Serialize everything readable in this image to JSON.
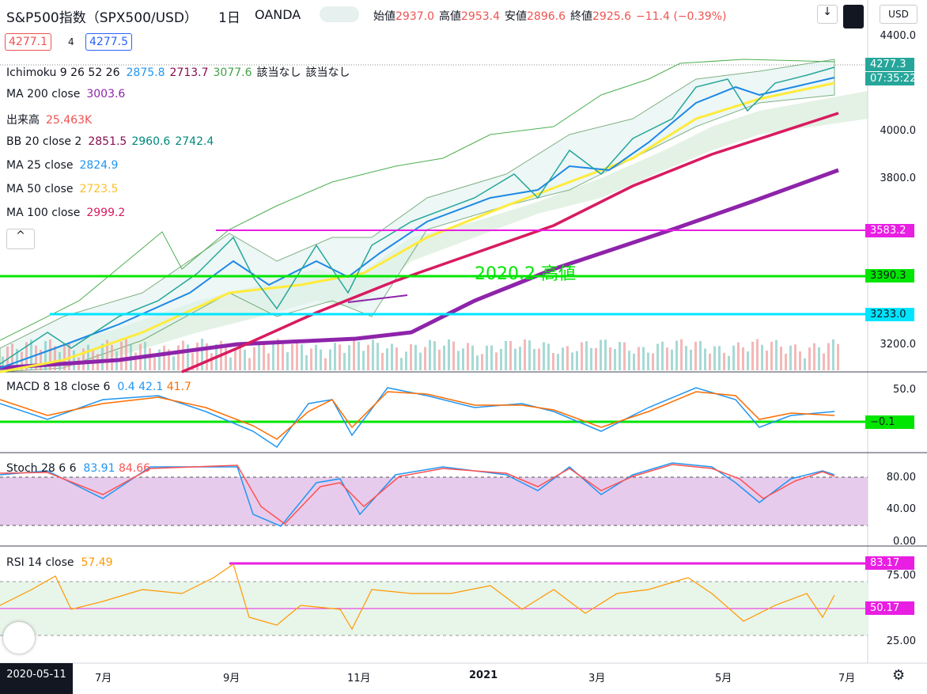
{
  "header": {
    "symbol": "S&P500指数（SPX500/USD）",
    "interval": "1日",
    "source": "OANDA",
    "ohlc": [
      {
        "label": "始値",
        "value": "2937.0"
      },
      {
        "label": "高値",
        "value": "2953.4"
      },
      {
        "label": "安値",
        "value": "2896.6"
      },
      {
        "label": "終値",
        "value": "2925.6"
      }
    ],
    "change": "−11.4 (−0.39%)",
    "currency": "USD"
  },
  "trade": {
    "bid": "4277.1",
    "spread": "4",
    "ask": "4277.5"
  },
  "indicators": [
    {
      "name": "Ichimoku 9 26 52 26",
      "values": [
        "2875.8",
        "2713.7",
        "3077.6",
        "該当なし",
        "該当なし"
      ]
    },
    {
      "name": "MA 200 close",
      "values": [
        "3003.6"
      ]
    },
    {
      "name": "出来高",
      "values": [
        "25.463K"
      ]
    },
    {
      "name": "BB 20 close 2",
      "values": [
        "2851.5",
        "2960.6",
        "2742.4"
      ]
    },
    {
      "name": "MA 25 close",
      "values": [
        "2824.9"
      ]
    },
    {
      "name": "MA 50 close",
      "values": [
        "2723.5"
      ]
    },
    {
      "name": "MA 100 close",
      "values": [
        "2999.2"
      ]
    }
  ],
  "price_axis": {
    "ticks": [
      "4400.0",
      "4000.0",
      "3800.0",
      "3200.0"
    ],
    "last_price": "4277.3",
    "countdown": "07:35:22",
    "levels": [
      "3583.2",
      "3390.3",
      "3233.0"
    ]
  },
  "annotation": "2020.2 高値",
  "macd": {
    "name": "MACD 8 18 close 6",
    "values": [
      "0.4",
      "42.1",
      "41.7"
    ],
    "ticks": [
      "50.0"
    ],
    "level": "−0.1"
  },
  "stoch": {
    "name": "Stoch 28 6 6",
    "values": [
      "83.91",
      "84.66"
    ],
    "ticks": [
      "80.00",
      "40.00",
      "0.00"
    ]
  },
  "rsi": {
    "name": "RSI 14 close",
    "values": [
      "57.49"
    ],
    "ticks": [
      "75.00",
      "25.00"
    ],
    "levels": [
      "83.17",
      "50.17"
    ]
  },
  "time_axis": {
    "cursor_date": "2020-05-11",
    "labels": [
      "7月",
      "9月",
      "11月",
      "2021",
      "3月",
      "5月",
      "7月"
    ]
  }
}
